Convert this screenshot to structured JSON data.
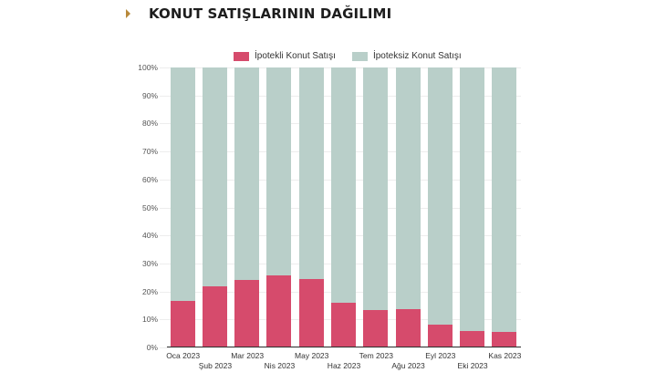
{
  "header": {
    "title": "KONUT SATIŞLARININ DAĞILIMI",
    "marker_color": "#b8893a"
  },
  "legend": [
    {
      "label": "İpotekli Konut Satışı",
      "color": "#d64b6c"
    },
    {
      "label": "İpoteksiz Konut Satışı",
      "color": "#b9cfc9"
    }
  ],
  "yticks": [
    "0%",
    "10%",
    "20%",
    "30%",
    "40%",
    "50%",
    "60%",
    "70%",
    "80%",
    "90%",
    "100%"
  ],
  "chart_data": {
    "type": "bar",
    "stacked": true,
    "percent": true,
    "title": "KONUT SATIŞLARININ DAĞILIMI",
    "xlabel": "",
    "ylabel": "",
    "ylim": [
      0,
      100
    ],
    "legend_position": "top",
    "categories": [
      "Oca 2023",
      "Şub 2023",
      "Mar 2023",
      "Nis 2023",
      "May 2023",
      "Haz 2023",
      "Tem 2023",
      "Ağu 2023",
      "Eyl 2023",
      "Eki 2023",
      "Kas 2023"
    ],
    "series": [
      {
        "name": "İpotekli Konut Satışı",
        "color": "#d64b6c",
        "values": [
          16.6,
          21.8,
          24.1,
          25.7,
          24.4,
          16.0,
          13.4,
          13.7,
          8.1,
          5.9,
          5.7
        ]
      },
      {
        "name": "İpoteksiz Konut Satışı",
        "color": "#b9cfc9",
        "values": [
          83.4,
          78.2,
          75.9,
          74.3,
          75.6,
          84.0,
          86.6,
          86.3,
          91.9,
          94.1,
          94.3
        ]
      }
    ]
  }
}
